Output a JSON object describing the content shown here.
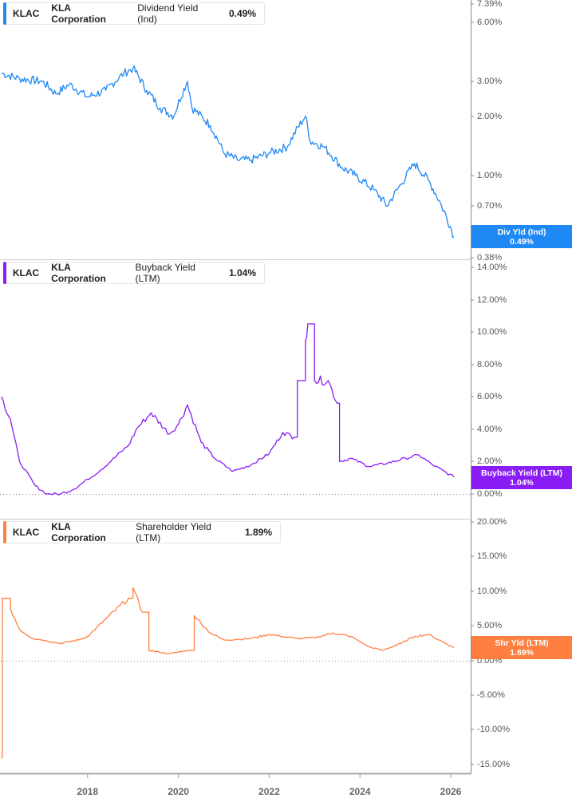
{
  "chart_data": [
    {
      "type": "line",
      "title": "KLAC KLA Corporation Dividend Yield (Ind)",
      "ticker": "KLAC",
      "company": "KLA Corporation",
      "metric": "Dividend Yield (Ind)",
      "current_value": "0.49%",
      "badge_label": "Div Yld (Ind)",
      "color": "#1e88f5",
      "scale": "log",
      "yticks": [
        "7.39%",
        "6.00%",
        "3.00%",
        "2.00%",
        "1.00%",
        "0.70%",
        "0.38%"
      ],
      "ylim": [
        0.38,
        7.39
      ],
      "x": [
        2016.1,
        2016.5,
        2017.0,
        2017.3,
        2017.6,
        2018.0,
        2018.4,
        2018.8,
        2019.0,
        2019.3,
        2019.6,
        2019.9,
        2020.2,
        2020.3,
        2020.7,
        2021.0,
        2021.3,
        2021.6,
        2022.0,
        2022.4,
        2022.8,
        2022.9,
        2023.2,
        2023.6,
        2023.9,
        2024.3,
        2024.6,
        2024.9,
        2025.2,
        2025.5,
        2025.8,
        2026.07
      ],
      "values": [
        3.3,
        3.1,
        3.0,
        2.6,
        2.9,
        2.5,
        2.7,
        3.3,
        3.5,
        2.7,
        2.2,
        2.0,
        3.0,
        2.2,
        1.8,
        1.3,
        1.2,
        1.2,
        1.3,
        1.4,
        2.0,
        1.5,
        1.4,
        1.1,
        1.0,
        0.85,
        0.7,
        0.9,
        1.15,
        0.95,
        0.7,
        0.49
      ]
    },
    {
      "type": "line",
      "title": "KLAC KLA Corporation Buyback Yield (LTM)",
      "ticker": "KLAC",
      "company": "KLA Corporation",
      "metric": "Buyback Yield (LTM)",
      "current_value": "1.04%",
      "badge_label": "Buyback Yield (LTM)",
      "color": "#8a1cf5",
      "scale": "linear",
      "yticks": [
        "14.00%",
        "12.00%",
        "10.00%",
        "8.00%",
        "6.00%",
        "4.00%",
        "2.00%",
        "0.00%"
      ],
      "ylim": [
        0,
        14
      ],
      "x": [
        2016.1,
        2016.3,
        2016.5,
        2016.85,
        2017.1,
        2017.4,
        2017.7,
        2018.0,
        2018.3,
        2018.9,
        2019.1,
        2019.4,
        2019.8,
        2020.0,
        2020.2,
        2020.5,
        2020.8,
        2021.2,
        2021.6,
        2022.0,
        2022.3,
        2022.55,
        2022.62,
        2022.8,
        2022.85,
        2023.0,
        2023.3,
        2023.5,
        2023.55,
        2023.8,
        2024.2,
        2024.6,
        2025.0,
        2025.3,
        2025.6,
        2026.07
      ],
      "values": [
        6.0,
        4.6,
        2.0,
        0.5,
        0.0,
        0.0,
        0.3,
        0.9,
        1.5,
        3.0,
        4.1,
        5.0,
        3.7,
        4.3,
        5.5,
        3.2,
        2.2,
        1.4,
        1.8,
        2.5,
        3.8,
        3.5,
        7.0,
        9.5,
        10.5,
        7.0,
        7.0,
        5.6,
        2.0,
        2.2,
        1.7,
        1.9,
        2.2,
        2.4,
        1.8,
        1.04
      ]
    },
    {
      "type": "line",
      "title": "KLAC KLA Corporation Shareholder Yield (LTM)",
      "ticker": "KLAC",
      "company": "KLA Corporation",
      "metric": "Shareholder Yield (LTM)",
      "current_value": "1.89%",
      "badge_label": "Shr Yld (LTM)",
      "color": "#ff7f40",
      "scale": "linear",
      "yticks": [
        "20.00%",
        "15.00%",
        "10.00%",
        "5.00%",
        "0.00%",
        "-5.00%",
        "-10.00%",
        "-15.00%"
      ],
      "ylim": [
        -16.5,
        20
      ],
      "x": [
        2016.1,
        2016.12,
        2016.3,
        2016.5,
        2016.8,
        2017.0,
        2017.4,
        2017.8,
        2018.0,
        2018.4,
        2018.9,
        2019.0,
        2019.2,
        2019.35,
        2019.8,
        2020.2,
        2020.35,
        2020.7,
        2021.0,
        2021.6,
        2022.0,
        2022.3,
        2022.6,
        2023.0,
        2023.4,
        2023.8,
        2024.2,
        2024.5,
        2024.9,
        2025.2,
        2025.5,
        2025.8,
        2026.07
      ],
      "values": [
        -14,
        9.0,
        7.5,
        4.5,
        3.2,
        3.0,
        2.5,
        3.0,
        3.5,
        6.0,
        9.0,
        10.5,
        7.0,
        1.5,
        1.0,
        1.5,
        6.5,
        4.0,
        3.0,
        3.2,
        3.8,
        3.5,
        3.2,
        3.3,
        4.0,
        3.5,
        2.0,
        1.5,
        2.5,
        3.5,
        3.8,
        2.8,
        1.89
      ]
    }
  ],
  "x_axis": {
    "ticks": [
      "2018",
      "2020",
      "2022",
      "2024",
      "2026"
    ],
    "range": [
      2016.1,
      2026.3
    ]
  },
  "panels": [
    {
      "ticker": "KLAC",
      "company": "KLA Corporation",
      "metric": "Dividend Yield (Ind)",
      "value": "0.49%",
      "badge_label": "Div Yld (Ind)",
      "badge_value": "0.49%"
    },
    {
      "ticker": "KLAC",
      "company": "KLA Corporation",
      "metric": "Buyback Yield (LTM)",
      "value": "1.04%",
      "badge_label": "Buyback Yield (LTM)",
      "badge_value": "1.04%"
    },
    {
      "ticker": "KLAC",
      "company": "KLA Corporation",
      "metric": "Shareholder Yield (LTM)",
      "value": "1.89%",
      "badge_label": "Shr Yld (LTM)",
      "badge_value": "1.89%"
    }
  ],
  "colors": {
    "dividend": "#1e88f5",
    "buyback": "#8a1cf5",
    "shareholder": "#ff7f40",
    "axis": "#888888",
    "tick_text": "#555555"
  }
}
